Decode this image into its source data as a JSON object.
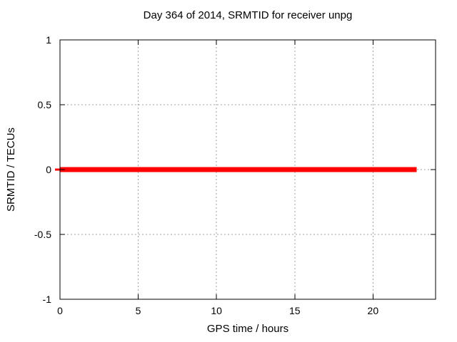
{
  "window": {
    "background": "#ffffff"
  },
  "chart_data": {
    "type": "line",
    "title": "Day 364 of 2014, SRMTID for receiver unpg",
    "xlabel": "GPS time / hours",
    "ylabel": "SRMTID / TECUs",
    "xlim": [
      0,
      24
    ],
    "ylim": [
      -1,
      1
    ],
    "xticks": [
      0,
      5,
      10,
      15,
      20
    ],
    "yticks": [
      -1,
      -0.5,
      0,
      0.5,
      1
    ],
    "grid": true,
    "grid_style": "dashed",
    "legend": "none",
    "colors": {
      "series": "#ff0000",
      "grid": "#a0a0a0",
      "axis": "#000000",
      "text": "#000000",
      "background": "#ffffff"
    },
    "series": [
      {
        "name": "SRMTID",
        "color": "#ff0000",
        "linewidth": 7,
        "x": [
          0,
          22.8
        ],
        "y": [
          0,
          0
        ]
      }
    ]
  }
}
